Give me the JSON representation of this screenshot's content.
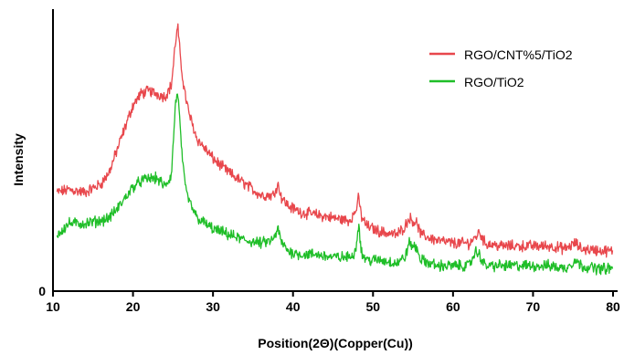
{
  "chart_data": {
    "type": "line",
    "xlabel": "Position(2Θ)(Copper(Cu))",
    "ylabel": "Intensity",
    "xlim": [
      10,
      80
    ],
    "ylim": [
      0,
      100
    ],
    "grid": false,
    "legend_position": "top-right",
    "x_ticks": [
      "10",
      "20",
      "30",
      "40",
      "50",
      "60",
      "70",
      "80"
    ],
    "y_ticks": [
      "0"
    ],
    "series": [
      {
        "name": "RGO/CNT%5/TiO2",
        "color": "#e8474c",
        "x": [
          10.5,
          12,
          14,
          16,
          17,
          18,
          19,
          20,
          21,
          22,
          23,
          24,
          24.8,
          25.3,
          25.6,
          26,
          26.5,
          27,
          28,
          30,
          32,
          34,
          36,
          37.5,
          38.1,
          38.6,
          39.5,
          41,
          43,
          45,
          47,
          47.8,
          48.2,
          48.6,
          49.3,
          51,
          53,
          54,
          54.5,
          55,
          55.5,
          56,
          58,
          60,
          62,
          62.8,
          63.3,
          64,
          66,
          68,
          70,
          72,
          74,
          75.3,
          76,
          78,
          80
        ],
        "values": [
          35,
          36,
          35,
          38,
          42,
          50,
          58,
          66,
          70,
          71,
          70,
          69,
          73,
          88,
          94,
          80,
          70,
          63,
          54,
          47,
          42,
          38,
          34,
          34,
          38,
          33,
          30,
          28,
          27,
          26,
          25,
          28,
          33,
          26,
          23,
          21,
          20,
          23,
          26,
          25,
          24,
          20,
          18,
          17,
          17,
          19,
          21,
          17,
          16,
          16,
          16,
          16,
          15,
          17,
          15,
          14.5,
          14
        ]
      },
      {
        "name": "RGO/TiO2",
        "color": "#1fbe28",
        "x": [
          10.5,
          12,
          14,
          16,
          17,
          18,
          19,
          20,
          21,
          22,
          23,
          24,
          24.8,
          25.3,
          25.6,
          26,
          26.5,
          27,
          28,
          30,
          32,
          34,
          36,
          37.5,
          38.1,
          38.6,
          39.5,
          41,
          43,
          45,
          47,
          47.8,
          48.2,
          48.6,
          49.3,
          51,
          53,
          54,
          54.5,
          55,
          55.5,
          56,
          58,
          60,
          62,
          62.8,
          63.3,
          64,
          66,
          68,
          70,
          72,
          74,
          75.3,
          76,
          78,
          80
        ],
        "values": [
          20,
          24,
          24,
          25,
          26,
          29,
          33,
          37,
          39,
          40,
          40,
          37,
          41,
          66,
          71,
          53,
          37,
          32,
          26,
          22,
          20,
          18,
          17,
          18,
          22,
          17,
          14,
          13,
          13,
          12,
          12,
          14,
          24,
          13,
          11,
          11,
          10,
          12,
          17,
          16,
          15,
          11,
          9,
          9,
          9,
          14,
          13,
          9,
          9,
          9,
          9,
          9,
          8,
          11,
          9,
          8,
          8
        ]
      }
    ]
  }
}
